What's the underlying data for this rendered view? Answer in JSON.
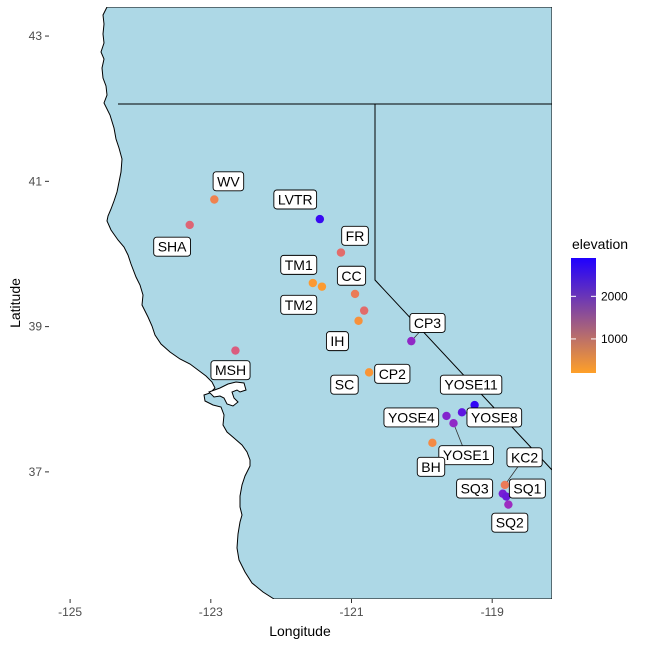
{
  "chart_data": {
    "type": "scatter",
    "title": "",
    "xlabel": "Longitude",
    "ylabel": "Latitude",
    "xlim": [
      -125.3,
      -118.15
    ],
    "ylim": [
      35.25,
      43.4
    ],
    "x_ticks": [
      {
        "value": -125,
        "label": "-125"
      },
      {
        "value": -123,
        "label": "-123"
      },
      {
        "value": -121,
        "label": "-121"
      },
      {
        "value": -119,
        "label": "-119"
      }
    ],
    "y_ticks": [
      {
        "value": 37,
        "label": "37"
      },
      {
        "value": 39,
        "label": "39"
      },
      {
        "value": 41,
        "label": "41"
      },
      {
        "value": 43,
        "label": "43"
      }
    ],
    "grid": false,
    "legend": {
      "title": "elevation",
      "placement": "right",
      "range": [
        200,
        2900
      ],
      "ticks": [
        {
          "value": 1000,
          "label": "1000"
        },
        {
          "value": 2000,
          "label": "2000"
        }
      ],
      "color_low": "#FFA028",
      "color_high": "#1F00FF"
    },
    "colors": {
      "land": "#ADD8E6",
      "border": "#000000",
      "background": "#FFFFFF"
    },
    "points": [
      {
        "name": "WV",
        "lon": -122.95,
        "lat": 40.75,
        "elevation": 600
      },
      {
        "name": "SHA",
        "lon": -123.3,
        "lat": 40.4,
        "elevation": 1000
      },
      {
        "name": "LVTR",
        "lon": -121.45,
        "lat": 40.48,
        "elevation": 2700
      },
      {
        "name": "FR",
        "lon": -121.15,
        "lat": 40.02,
        "elevation": 900
      },
      {
        "name": "TM1",
        "lon": -121.55,
        "lat": 39.6,
        "elevation": 300
      },
      {
        "name": "TM2",
        "lon": -121.42,
        "lat": 39.55,
        "elevation": 280
      },
      {
        "name": "CC",
        "lon": -120.95,
        "lat": 39.45,
        "elevation": 700
      },
      {
        "name": "IH",
        "lon": -120.9,
        "lat": 39.08,
        "elevation": 400
      },
      {
        "name": "CC2",
        "lon": -120.82,
        "lat": 39.22,
        "elevation": 900
      },
      {
        "name": "CP3",
        "lon": -120.15,
        "lat": 38.8,
        "elevation": 2000
      },
      {
        "name": "CP2",
        "lon": -120.75,
        "lat": 38.37,
        "elevation": 350
      },
      {
        "name": "MSH",
        "lon": -122.65,
        "lat": 38.67,
        "elevation": 1100
      },
      {
        "name": "YOSE11",
        "lon": -119.25,
        "lat": 37.92,
        "elevation": 2750
      },
      {
        "name": "YOSE4",
        "lon": -119.65,
        "lat": 37.77,
        "elevation": 2100
      },
      {
        "name": "YOSE8",
        "lon": -119.43,
        "lat": 37.82,
        "elevation": 2400
      },
      {
        "name": "YOSE1",
        "lon": -119.55,
        "lat": 37.67,
        "elevation": 2000
      },
      {
        "name": "BH",
        "lon": -119.85,
        "lat": 37.4,
        "elevation": 500
      },
      {
        "name": "KC2",
        "lon": -118.82,
        "lat": 36.82,
        "elevation": 700
      },
      {
        "name": "SQ3",
        "lon": -118.85,
        "lat": 36.7,
        "elevation": 2200
      },
      {
        "name": "SQ1",
        "lon": -118.8,
        "lat": 36.66,
        "elevation": 2300
      },
      {
        "name": "SQ2",
        "lon": -118.77,
        "lat": 36.55,
        "elevation": 1900
      }
    ],
    "labels": [
      {
        "text": "WV",
        "anchor": "WV",
        "lon": -122.75,
        "lat": 41.0,
        "leader": false
      },
      {
        "text": "SHA",
        "anchor": "SHA",
        "lon": -123.55,
        "lat": 40.1,
        "leader": false
      },
      {
        "text": "LVTR",
        "anchor": "LVTR",
        "lon": -121.8,
        "lat": 40.75,
        "leader": false
      },
      {
        "text": "FR",
        "anchor": "FR",
        "lon": -120.95,
        "lat": 40.25,
        "leader": false
      },
      {
        "text": "TM1",
        "anchor": "TM1",
        "lon": -121.75,
        "lat": 39.85,
        "leader": false
      },
      {
        "text": "CC",
        "anchor": "CC",
        "lon": -121.0,
        "lat": 39.7,
        "leader": false
      },
      {
        "text": "TM2",
        "anchor": "TM2",
        "lon": -121.75,
        "lat": 39.3,
        "leader": false
      },
      {
        "text": "CP3",
        "anchor": "CP3",
        "lon": -119.92,
        "lat": 39.05,
        "leader": true
      },
      {
        "text": "IH",
        "anchor": "IH",
        "lon": -121.2,
        "lat": 38.8,
        "leader": false
      },
      {
        "text": "CP2",
        "anchor": "CP2",
        "lon": -120.42,
        "lat": 38.35,
        "leader": false
      },
      {
        "text": "MSH",
        "anchor": "MSH",
        "lon": -122.72,
        "lat": 38.4,
        "leader": false
      },
      {
        "text": "SC",
        "anchor": "CP2",
        "lon": -121.1,
        "lat": 38.2,
        "leader": false
      },
      {
        "text": "YOSE11",
        "anchor": "YOSE11",
        "lon": -119.3,
        "lat": 38.2,
        "leader": false
      },
      {
        "text": "YOSE4",
        "anchor": "YOSE4",
        "lon": -120.15,
        "lat": 37.75,
        "leader": false
      },
      {
        "text": "YOSE8",
        "anchor": "YOSE8",
        "lon": -118.97,
        "lat": 37.75,
        "leader": true
      },
      {
        "text": "YOSE1",
        "anchor": "YOSE1",
        "lon": -119.37,
        "lat": 37.23,
        "leader": true
      },
      {
        "text": "BH",
        "anchor": "BH",
        "lon": -119.87,
        "lat": 37.07,
        "leader": false
      },
      {
        "text": "KC2",
        "anchor": "KC2",
        "lon": -118.54,
        "lat": 37.2,
        "leader": true
      },
      {
        "text": "SQ3",
        "anchor": "SQ3",
        "lon": -119.25,
        "lat": 36.77,
        "leader": false
      },
      {
        "text": "SQ1",
        "anchor": "SQ1",
        "lon": -118.5,
        "lat": 36.77,
        "leader": true
      },
      {
        "text": "SQ2",
        "anchor": "SQ2",
        "lon": -118.75,
        "lat": 36.3,
        "leader": false
      }
    ]
  }
}
